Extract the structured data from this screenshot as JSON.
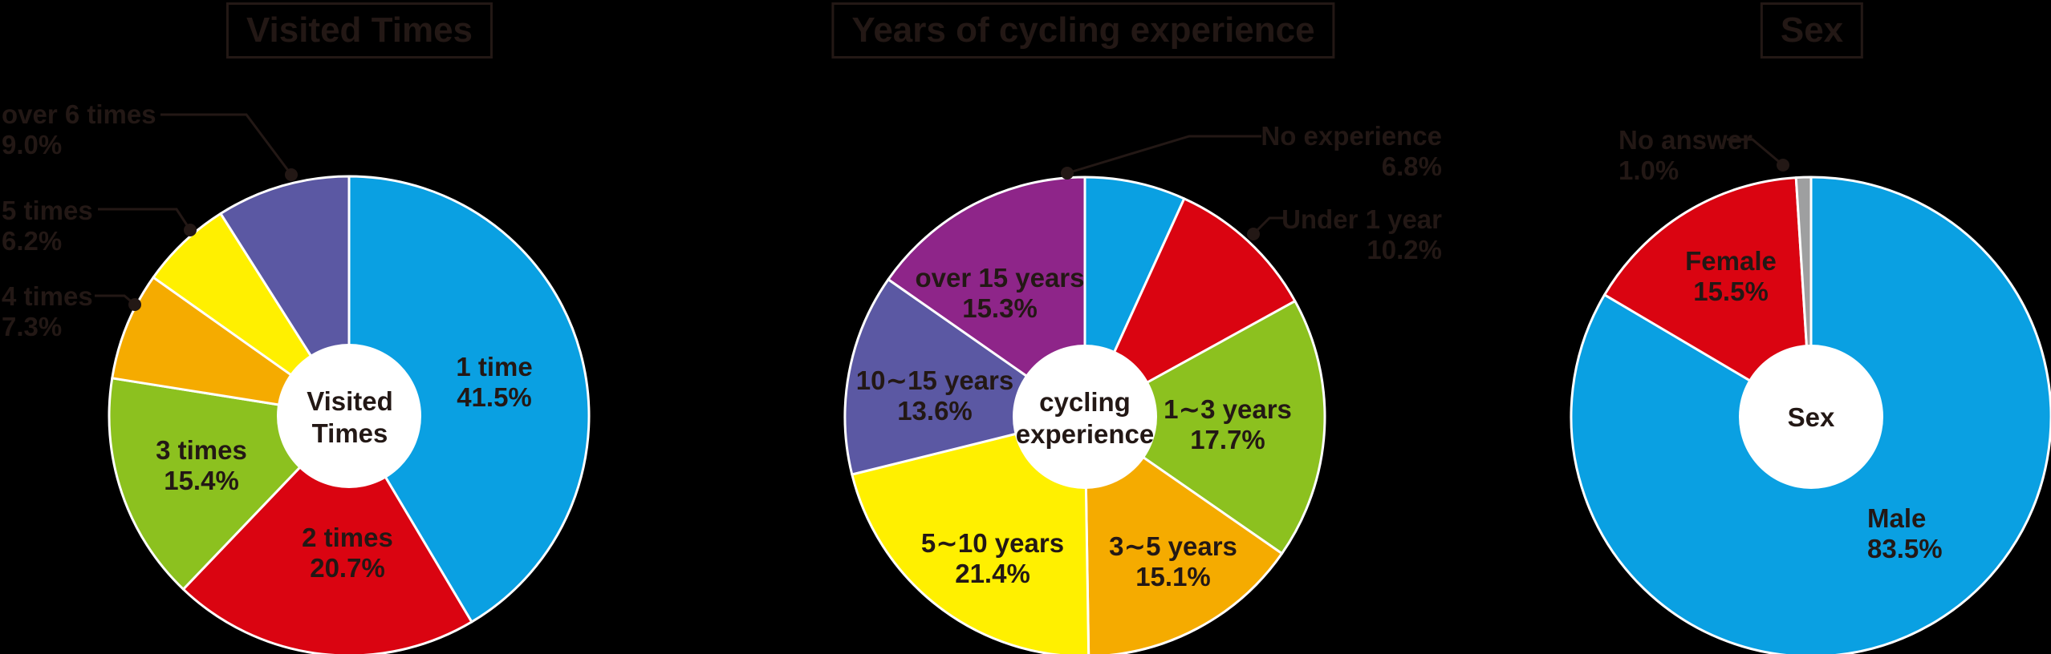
{
  "palette": {
    "background": "#000000",
    "ink": "#231815",
    "hole": "#FFFFFF",
    "divider": "#FFFFFF",
    "blue": "#0AA0E2",
    "red": "#DA0411",
    "green": "#8CC11F",
    "orange": "#F5AB00",
    "yellow": "#FFF000",
    "violet": "#5B58A3",
    "purple": "#8E2589",
    "gray": "#9E9FA0"
  },
  "chart_data": [
    {
      "type": "pie",
      "variant": "donut",
      "title": "Visited Times",
      "center_label": [
        "Visited",
        "Times"
      ],
      "legend_position": "labels-on-and-around-pie",
      "start_angle": "12-oclock-clockwise",
      "segments": [
        {
          "label": "1 time",
          "pct": "41.5%",
          "value": 41.5,
          "color": "#0AA0E2",
          "placement": "inside"
        },
        {
          "label": "2 times",
          "pct": "20.7%",
          "value": 20.7,
          "color": "#DA0411",
          "placement": "inside"
        },
        {
          "label": "3 times",
          "pct": "15.4%",
          "value": 15.4,
          "color": "#8CC11F",
          "placement": "inside"
        },
        {
          "label": "4 times",
          "pct": "7.3%",
          "value": 7.3,
          "color": "#F5AB00",
          "placement": "outside-left"
        },
        {
          "label": "5 times",
          "pct": "6.2%",
          "value": 6.2,
          "color": "#FFF000",
          "placement": "outside-left"
        },
        {
          "label": "over 6 times",
          "pct": "9.0%",
          "value": 9.0,
          "color": "#5B58A3",
          "placement": "outside-left"
        }
      ]
    },
    {
      "type": "pie",
      "variant": "donut",
      "title": "Years of cycling experience",
      "center_label": [
        "cycling",
        "experience"
      ],
      "legend_position": "labels-on-and-around-pie",
      "start_angle": "12-oclock-clockwise",
      "segments": [
        {
          "label": "No experience",
          "pct": "6.8%",
          "value": 6.8,
          "color": "#0AA0E2",
          "placement": "outside-right"
        },
        {
          "label": "Under 1 year",
          "pct": "10.2%",
          "value": 10.2,
          "color": "#DA0411",
          "placement": "outside-right"
        },
        {
          "label": "1∼3 years",
          "pct": "17.7%",
          "value": 17.7,
          "color": "#8CC11F",
          "placement": "inside"
        },
        {
          "label": "3∼5 years",
          "pct": "15.1%",
          "value": 15.1,
          "color": "#F5AB00",
          "placement": "inside"
        },
        {
          "label": "5∼10 years",
          "pct": "21.4%",
          "value": 21.4,
          "color": "#FFF000",
          "placement": "inside"
        },
        {
          "label": "10∼15 years",
          "pct": "13.6%",
          "value": 13.6,
          "color": "#5B58A3",
          "placement": "inside"
        },
        {
          "label": "over 15 years",
          "pct": "15.3%",
          "value": 15.3,
          "color": "#8E2589",
          "placement": "inside"
        }
      ]
    },
    {
      "type": "pie",
      "variant": "donut",
      "title": "Sex",
      "center_label": [
        "Sex"
      ],
      "legend_position": "labels-on-and-around-pie",
      "start_angle": "12-oclock-clockwise",
      "segments": [
        {
          "label": "Male",
          "pct": "83.5%",
          "value": 83.5,
          "color": "#0AA0E2",
          "placement": "inside"
        },
        {
          "label": "Female",
          "pct": "15.5%",
          "value": 15.5,
          "color": "#DA0411",
          "placement": "inside"
        },
        {
          "label": "No answer",
          "pct": "1.0%",
          "value": 1.0,
          "color": "#9E9FA0",
          "placement": "outside-left"
        }
      ]
    }
  ]
}
